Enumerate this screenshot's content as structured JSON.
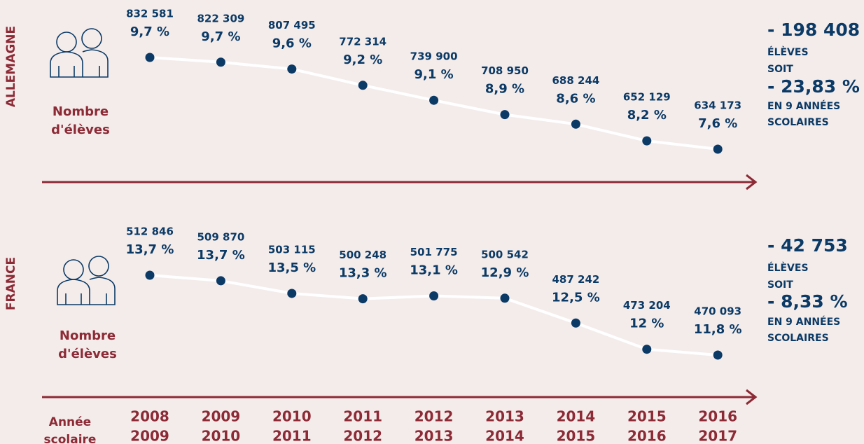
{
  "chart_data": [
    {
      "type": "line",
      "title": "ALLEMAGNE",
      "series": [
        {
          "name": "Nombre d'élèves",
          "color": "#ffffff",
          "marker_color": "#0b3a66",
          "values": [
            832581,
            822309,
            807495,
            772314,
            739900,
            708950,
            688244,
            652129,
            634173
          ],
          "value_labels": [
            "832 581",
            "822 309",
            "807 495",
            "772 314",
            "739 900",
            "708 950",
            "688 244",
            "652 129",
            "634 173"
          ],
          "shares": [
            9.7,
            9.7,
            9.6,
            9.2,
            9.1,
            8.9,
            8.6,
            8.2,
            7.6
          ],
          "share_labels": [
            "9,7 %",
            "9,7 %",
            "9,6 %",
            "9,2 %",
            "9,1 %",
            "8,9 %",
            "8,6 %",
            "8,2 %",
            "7,6 %"
          ]
        }
      ],
      "summary": {
        "change": {
          "value": -198408,
          "label": "- 198 408"
        },
        "unit": "ÉLÈVES",
        "link": "SOIT",
        "change_pct": {
          "value": -23.83,
          "label": "- 23,83 %"
        },
        "period": [
          "EN 9 ANNÉES",
          "SCOLAIRES"
        ]
      }
    },
    {
      "type": "line",
      "title": "FRANCE",
      "series": [
        {
          "name": "Nombre d'élèves",
          "color": "#ffffff",
          "marker_color": "#0b3a66",
          "values": [
            512846,
            509870,
            503115,
            500248,
            501775,
            500542,
            487242,
            473204,
            470093
          ],
          "value_labels": [
            "512 846",
            "509 870",
            "503 115",
            "500 248",
            "501 775",
            "500 542",
            "487 242",
            "473 204",
            "470 093"
          ],
          "shares": [
            13.7,
            13.7,
            13.5,
            13.3,
            13.1,
            12.9,
            12.5,
            12,
            11.8
          ],
          "share_labels": [
            "13,7 %",
            "13,7 %",
            "13,5 %",
            "13,3 %",
            "13,1 %",
            "12,9 %",
            "12,5 %",
            "12 %",
            "11,8 %"
          ]
        }
      ],
      "summary": {
        "change": {
          "value": -42753,
          "label": "- 42 753"
        },
        "unit": "ÉLÈVES",
        "link": "SOIT",
        "change_pct": {
          "value": -8.33,
          "label": "- 8,33 %"
        },
        "period": [
          "EN 9 ANNÉES",
          "SCOLAIRES"
        ]
      },
      "xlabel": [
        "Année",
        "scolaire"
      ],
      "categories": [
        [
          "2008",
          "2009"
        ],
        [
          "2009",
          "2010"
        ],
        [
          "2010",
          "2011"
        ],
        [
          "2011",
          "2012"
        ],
        [
          "2012",
          "2013"
        ],
        [
          "2013",
          "2014"
        ],
        [
          "2014",
          "2015"
        ],
        [
          "2015",
          "2016"
        ],
        [
          "2016",
          "2017"
        ]
      ]
    }
  ]
}
